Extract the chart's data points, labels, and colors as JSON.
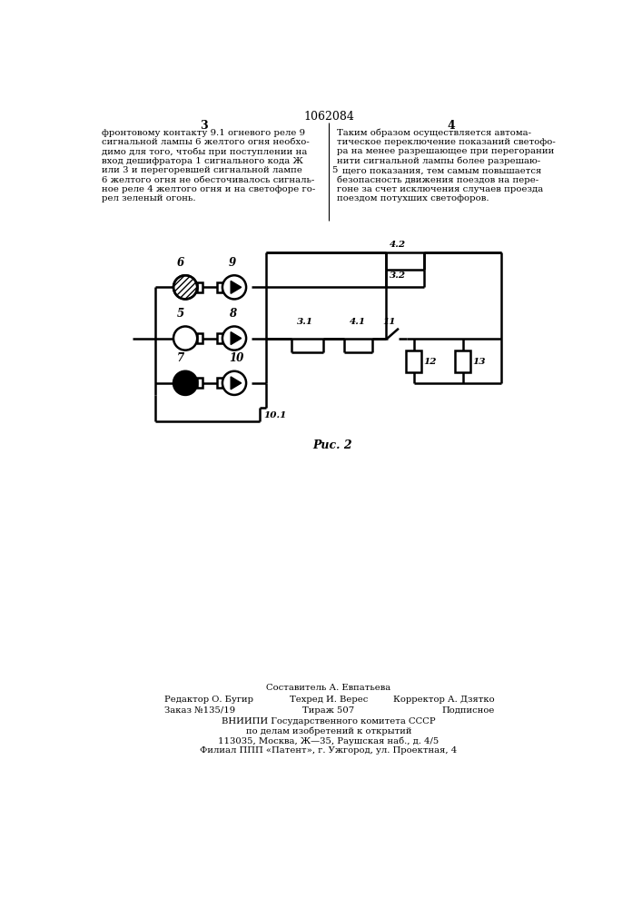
{
  "page_number_left": "3",
  "page_number_right": "4",
  "patent_number": "1062084",
  "text_left": "фронтовому контакту 9.1 огневого реле 9\nсигнальной лампы 6 желтого огня необхо-\nдимо для того, чтобы при поступлении на\nвход дешифратора 1 сигнального кода Ж\nили 3 и перегоревшей сигнальной лампе\n6 желтого огня не обесточивалось сигналь-\nное реле 4 желтого огня и на светофоре го-\nрел зеленый огонь.",
  "text_right": "Таким образом осуществляется автома-\nтическое переключение показаний светофо-\nра на менее разрешающее при перегорании\nнити сигнальной лампы более разрешаю-\nщего показания, тем самым повышается\nбезопасность движения поездов на пере-\nгоне за счет исключения случаев проезда\nпоездом потухших светофоров.",
  "fig_label": "Рис. 2",
  "footer_line1": "Составитель А. Евпатьева",
  "footer_line2_left": "Редактор О. Бугир",
  "footer_line2_mid": "Техред И. Верес",
  "footer_line2_right": "Корректор А. Дзятко",
  "footer_line3_left": "Заказ №135/19",
  "footer_line3_mid": "Тираж 507",
  "footer_line3_right": "Подписное",
  "footer_line4": "ВНИИПИ Государственного комитета СССР",
  "footer_line5": "по делам изобретений к открытий",
  "footer_line6": "113035, Москва, Ж—35, Раушская наб., д. 4/5",
  "footer_line7": "Филиал ППП «Патент», г. Ужгород, ул. Проектная, 4",
  "bg_color": "#ffffff",
  "line_color": "#000000",
  "text_color": "#000000"
}
